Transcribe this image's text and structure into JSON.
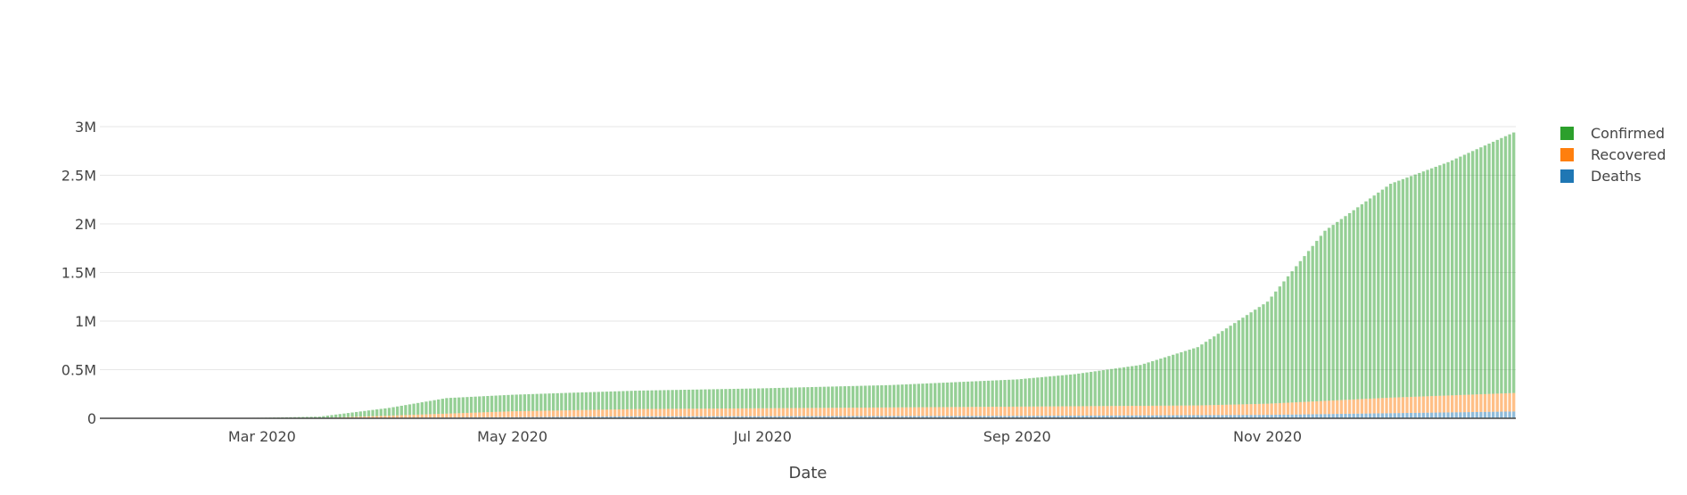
{
  "chart_data": {
    "type": "bar",
    "stacked": true,
    "title": "",
    "xlabel": "Date",
    "ylabel": "",
    "x_start": "2020-01-22",
    "x_end": "2020-12-31",
    "x_ticks": [
      "2020-03-01",
      "2020-05-01",
      "2020-07-01",
      "2020-09-01",
      "2020-11-01"
    ],
    "x_tick_labels": [
      "Mar 2020",
      "May 2020",
      "Jul 2020",
      "Sep 2020",
      "Nov 2020"
    ],
    "ylim": [
      0,
      3000000
    ],
    "y_ticks": [
      0,
      500000,
      1000000,
      1500000,
      2000000,
      2500000,
      3000000
    ],
    "y_tick_labels": [
      "0",
      "0.5M",
      "1M",
      "1.5M",
      "2M",
      "2.5M",
      "3M"
    ],
    "grid": true,
    "legend_position": "right",
    "series": [
      {
        "name": "Deaths",
        "color": "#1f77b4",
        "points": [
          [
            "2020-01-22",
            0
          ],
          [
            "2020-03-15",
            100
          ],
          [
            "2020-04-15",
            8000
          ],
          [
            "2020-06-01",
            20000
          ],
          [
            "2020-09-01",
            25000
          ],
          [
            "2020-11-01",
            35000
          ],
          [
            "2020-12-31",
            70000
          ]
        ]
      },
      {
        "name": "Recovered",
        "color": "#ff7f0e",
        "points": [
          [
            "2020-01-22",
            0
          ],
          [
            "2020-03-15",
            2000
          ],
          [
            "2020-04-15",
            40000
          ],
          [
            "2020-05-01",
            60000
          ],
          [
            "2020-06-01",
            75000
          ],
          [
            "2020-09-01",
            95000
          ],
          [
            "2020-10-15",
            100000
          ],
          [
            "2020-11-01",
            115000
          ],
          [
            "2020-12-01",
            160000
          ],
          [
            "2020-12-31",
            190000
          ]
        ]
      },
      {
        "name": "Confirmed",
        "color": "#2ca02c",
        "points": [
          [
            "2020-01-22",
            200
          ],
          [
            "2020-02-15",
            1000
          ],
          [
            "2020-03-01",
            4000
          ],
          [
            "2020-03-15",
            15000
          ],
          [
            "2020-04-01",
            80000
          ],
          [
            "2020-04-15",
            160000
          ],
          [
            "2020-05-01",
            170000
          ],
          [
            "2020-05-15",
            180000
          ],
          [
            "2020-06-01",
            190000
          ],
          [
            "2020-07-01",
            205000
          ],
          [
            "2020-08-01",
            230000
          ],
          [
            "2020-09-01",
            280000
          ],
          [
            "2020-09-15",
            330000
          ],
          [
            "2020-10-01",
            420000
          ],
          [
            "2020-10-15",
            600000
          ],
          [
            "2020-11-01",
            1050000
          ],
          [
            "2020-11-15",
            1750000
          ],
          [
            "2020-12-01",
            2200000
          ],
          [
            "2020-12-15",
            2400000
          ],
          [
            "2020-12-31",
            2680000
          ]
        ]
      }
    ],
    "legend": [
      {
        "name": "Confirmed",
        "color": "#2ca02c"
      },
      {
        "name": "Recovered",
        "color": "#ff7f0e"
      },
      {
        "name": "Deaths",
        "color": "#1f77b4"
      }
    ]
  }
}
